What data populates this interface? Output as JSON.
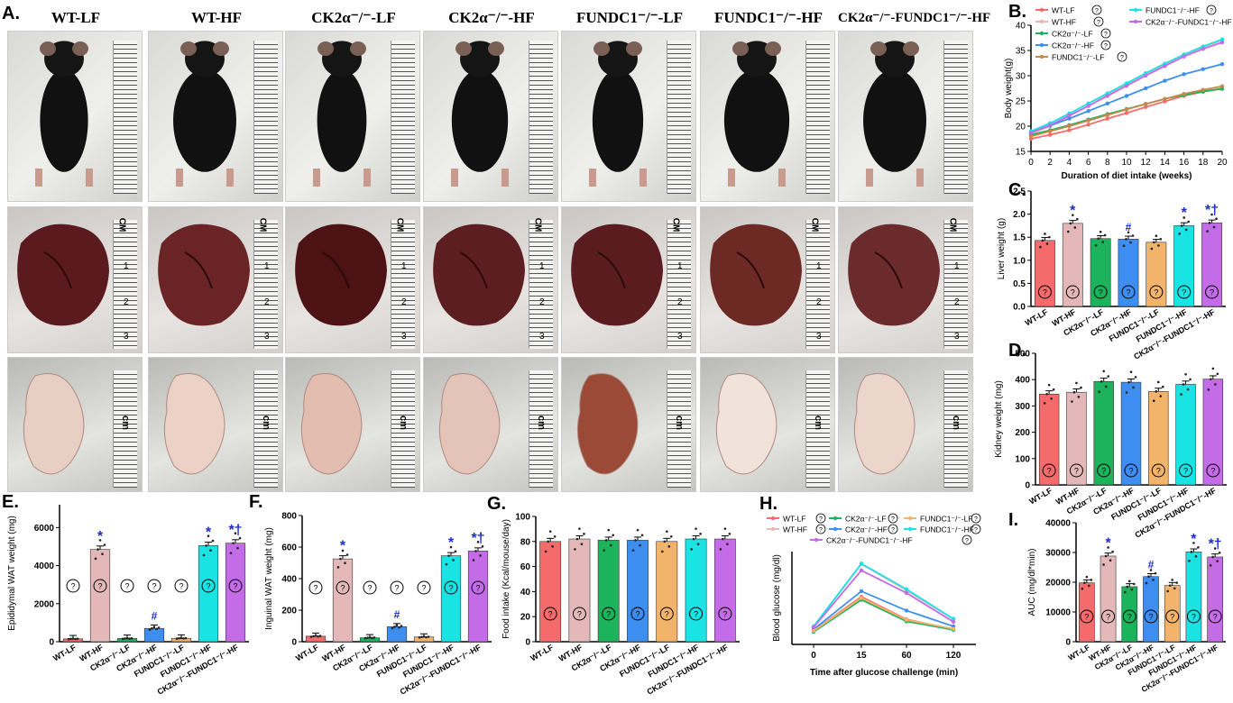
{
  "figure": {
    "panel_letters": [
      "A.",
      "B.",
      "C.",
      "D.",
      "E.",
      "F.",
      "G.",
      "H.",
      "I."
    ],
    "photo_columns": [
      "WT-LF",
      "WT-HF",
      "CK2α⁻/⁻-LF",
      "CK2α⁻/⁻-HF",
      "FUNDC1⁻/⁻-LF",
      "FUNDC1⁻/⁻-HF",
      "CK2α⁻/⁻-FUNDC1⁻/⁻-HF"
    ],
    "ruler_labels": {
      "cm": "CM",
      "unit": "cm",
      "n1": "1",
      "n2": "2",
      "n3": "3"
    },
    "symbols": {
      "star": "*",
      "hash": "#",
      "star_dagger": "*†",
      "q": "?"
    },
    "bar_groups": [
      "WT-LF",
      "WT-HF",
      "CK2α⁻/⁻-LF",
      "CK2α⁻/⁻-HF",
      "FUNDC1⁻/⁻-LF",
      "FUNDC1⁻/⁻-HF",
      "CK2α⁻/⁻-FUNDC1⁻/⁻-HF"
    ],
    "bar_colors": [
      "#f56b6b",
      "#e4b8b8",
      "#1bb35c",
      "#3d8ef0",
      "#f2b36b",
      "#19e3e3",
      "#c46be8"
    ]
  },
  "chart_data": [
    {
      "id": "B",
      "type": "line",
      "xlabel": "Duration of diet intake  (weeks)",
      "ylabel": "Body weight(g)",
      "xlim": [
        0,
        20
      ],
      "ylim": [
        15,
        40
      ],
      "xticks": [
        0,
        2,
        4,
        6,
        8,
        10,
        12,
        14,
        16,
        18,
        20
      ],
      "yticks": [
        15,
        20,
        25,
        30,
        35,
        40
      ],
      "legend": [
        "WT-LF",
        "WT-HF",
        "CK2α⁻/⁻-LF",
        "CK2α⁻/⁻-HF",
        "FUNDC1⁻/⁻-LF",
        "FUNDC1⁻/⁻-HF",
        "CK2α⁻/⁻-FUNDC1⁻/⁻-HF"
      ],
      "x": [
        0,
        2,
        4,
        6,
        8,
        10,
        12,
        14,
        16,
        18,
        20
      ],
      "series": [
        {
          "name": "WT-LF",
          "color": "#f56b6b",
          "values": [
            17.5,
            18.3,
            19.2,
            20.3,
            21.5,
            22.6,
            23.8,
            24.9,
            26.0,
            26.8,
            27.5
          ]
        },
        {
          "name": "WT-HF",
          "color": "#e4b8b8",
          "values": [
            18.5,
            20.0,
            22.0,
            24.0,
            26.2,
            28.2,
            30.2,
            32.2,
            34.0,
            35.6,
            37.0
          ]
        },
        {
          "name": "CK2α⁻/⁻-LF",
          "color": "#1bb35c",
          "values": [
            18.3,
            19.2,
            20.2,
            21.3,
            22.4,
            23.4,
            24.4,
            25.4,
            26.2,
            26.9,
            27.4
          ]
        },
        {
          "name": "CK2α⁻/⁻-HF",
          "color": "#3d8ef0",
          "values": [
            18.8,
            20.1,
            21.5,
            23.0,
            24.5,
            26.0,
            27.5,
            29.0,
            30.3,
            31.3,
            32.3
          ]
        },
        {
          "name": "FUNDC1⁻/⁻-LF",
          "color": "#c58a4a",
          "values": [
            18.0,
            19.0,
            20.0,
            21.1,
            22.2,
            23.3,
            24.4,
            25.4,
            26.4,
            27.2,
            27.9
          ]
        },
        {
          "name": "FUNDC1⁻/⁻-HF",
          "color": "#19e3e3",
          "values": [
            19.0,
            20.6,
            22.5,
            24.5,
            26.5,
            28.5,
            30.5,
            32.4,
            34.2,
            35.8,
            37.2
          ]
        },
        {
          "name": "CK2α⁻/⁻-FUNDC1⁻/⁻-HF",
          "color": "#c46be8",
          "values": [
            18.7,
            20.2,
            22.1,
            24.0,
            26.0,
            28.0,
            30.0,
            31.9,
            33.8,
            35.3,
            36.6
          ]
        }
      ]
    },
    {
      "id": "C",
      "type": "bar",
      "ylabel": "Liver weight (g)",
      "ylim": [
        0,
        2.5
      ],
      "yticks": [
        0.0,
        0.5,
        1.0,
        1.5,
        2.0,
        2.5
      ],
      "ytick_labels": [
        "0.0",
        "0.5",
        "1.0",
        "1.5",
        "2.0",
        "2.5"
      ],
      "values": [
        1.43,
        1.8,
        1.47,
        1.46,
        1.39,
        1.75,
        1.81
      ],
      "marks": [
        "",
        "*",
        "",
        "#",
        "",
        "*",
        "*†"
      ]
    },
    {
      "id": "D",
      "type": "bar",
      "ylabel": "Kidney weight (mg)",
      "ylim": [
        0,
        500
      ],
      "yticks": [
        0,
        100,
        200,
        300,
        400,
        500
      ],
      "ytick_labels": [
        "0",
        "100",
        "200",
        "300",
        "400",
        "500"
      ],
      "values": [
        345,
        352,
        393,
        390,
        355,
        382,
        402
      ],
      "marks": [
        "",
        "",
        "",
        "",
        "",
        "",
        ""
      ]
    },
    {
      "id": "E",
      "type": "bar",
      "ylabel": "Epididymal WAT weight (mg)",
      "ylim": [
        0,
        7200
      ],
      "yticks": [
        0,
        2000,
        4000,
        6000
      ],
      "ytick_labels": [
        "0",
        "2000",
        "4000",
        "6000"
      ],
      "values": [
        150,
        4850,
        170,
        700,
        180,
        5050,
        5180
      ],
      "marks": [
        "",
        "*",
        "",
        "#",
        "",
        "*",
        "*†"
      ]
    },
    {
      "id": "F",
      "type": "bar",
      "ylabel": "Inguinal WAT weight (mg)",
      "ylim": [
        0,
        800
      ],
      "yticks": [
        0,
        200,
        400,
        600,
        800
      ],
      "ytick_labels": [
        "0",
        "200",
        "400",
        "600",
        "800"
      ],
      "values": [
        35,
        525,
        25,
        95,
        30,
        545,
        575
      ],
      "marks": [
        "",
        "*",
        "",
        "#",
        "",
        "*",
        "*†"
      ]
    },
    {
      "id": "G",
      "type": "bar",
      "ylabel": "Food intake (Kcal/mouse/day)",
      "ylim": [
        0,
        100
      ],
      "yticks": [
        0,
        20,
        40,
        60,
        80,
        100
      ],
      "ytick_labels": [
        "0",
        "20",
        "40",
        "60",
        "80",
        "100"
      ],
      "values": [
        80,
        82,
        81,
        81,
        80,
        82,
        82
      ],
      "marks": [
        "",
        "",
        "",
        "",
        "",
        "",
        ""
      ]
    },
    {
      "id": "H",
      "type": "line",
      "xlabel": "Time after glucose challenge (min)",
      "ylabel": "Blood glucose (mg/dl)",
      "x": [
        0,
        15,
        60,
        120
      ],
      "xtick_labels": [
        "0",
        "15",
        "60",
        "120"
      ],
      "ylim": [
        50,
        420
      ],
      "yticks": [],
      "legend": [
        "WT-LF",
        "WT-HF",
        "CK2α⁻/⁻-LF",
        "CK2α⁻/⁻-HF",
        "FUNDC1⁻/⁻-LF",
        "FUNDC1⁻/⁻-HF",
        "CK2α⁻/⁻-FUNDC1⁻/⁻-HF"
      ],
      "series": [
        {
          "name": "WT-LF",
          "color": "#f56b6b",
          "values": [
            105,
            240,
            150,
            110
          ]
        },
        {
          "name": "WT-HF",
          "color": "#e4b8b8",
          "values": [
            120,
            370,
            265,
            150
          ]
        },
        {
          "name": "CK2α⁻/⁻-LF",
          "color": "#1bb35c",
          "values": [
            100,
            228,
            142,
            108
          ]
        },
        {
          "name": "CK2α⁻/⁻-HF",
          "color": "#3d8ef0",
          "values": [
            110,
            262,
            185,
            122
          ]
        },
        {
          "name": "FUNDC1⁻/⁻-LF",
          "color": "#f2b36b",
          "values": [
            104,
            235,
            148,
            112
          ]
        },
        {
          "name": "FUNDC1⁻/⁻-HF",
          "color": "#19e3e3",
          "values": [
            122,
            372,
            270,
            152
          ]
        },
        {
          "name": "CK2α⁻/⁻-FUNDC1⁻/⁻-HF",
          "color": "#c46be8",
          "values": [
            118,
            345,
            255,
            140
          ]
        }
      ]
    },
    {
      "id": "I",
      "type": "bar",
      "ylabel": "AUC (mg/dl*min)",
      "ylim": [
        0,
        40000
      ],
      "yticks": [
        0,
        10000,
        20000,
        30000,
        40000
      ],
      "ytick_labels": [
        "0",
        "10000",
        "20000",
        "30000",
        "40000"
      ],
      "values": [
        19800,
        28800,
        18500,
        21900,
        18900,
        30200,
        28500
      ],
      "marks": [
        "",
        "*",
        "",
        "#",
        "",
        "*",
        "*†"
      ]
    }
  ]
}
